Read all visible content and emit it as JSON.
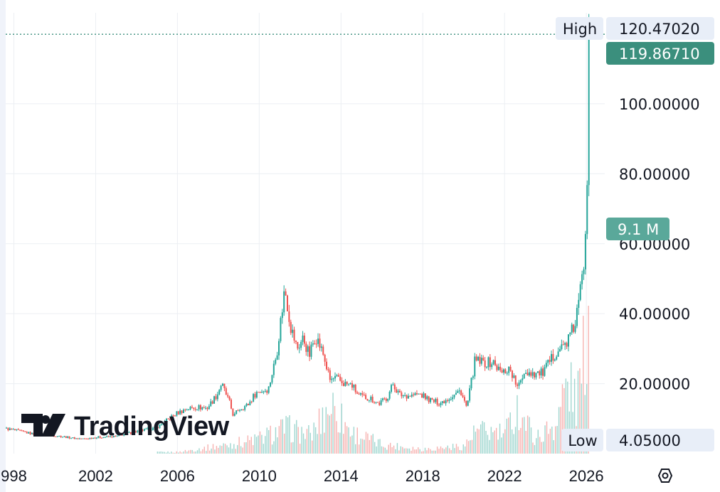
{
  "chart_data": {
    "type": "candlestick",
    "title": "",
    "x_ticks": [
      "998",
      "2002",
      "2006",
      "2010",
      "2014",
      "2018",
      "2022",
      "2026"
    ],
    "y_ticks": [
      "20.00000",
      "40.00000",
      "60.00000",
      "80.00000",
      "100.00000"
    ],
    "ylim": [
      0,
      126
    ],
    "xlim_years": [
      1997.6,
      2026.9
    ],
    "grid": true,
    "high": {
      "label": "High",
      "value": "120.47020"
    },
    "low": {
      "label": "Low",
      "value": "4.05000"
    },
    "last_price": {
      "value": "119.86710",
      "numeric": 119.8671
    },
    "volume_badge": "9.1 M",
    "price_path": [
      [
        1997.6,
        7.2
      ],
      [
        1998.0,
        6.8
      ],
      [
        1999.0,
        5.6
      ],
      [
        2000.0,
        5.2
      ],
      [
        2001.0,
        4.4
      ],
      [
        2001.5,
        4.2
      ],
      [
        2002.0,
        4.6
      ],
      [
        2003.0,
        4.9
      ],
      [
        2004.0,
        6.3
      ],
      [
        2005.0,
        7.3
      ],
      [
        2006.0,
        11.5
      ],
      [
        2006.5,
        12.8
      ],
      [
        2007.0,
        13.3
      ],
      [
        2007.5,
        13.0
      ],
      [
        2008.0,
        17.0
      ],
      [
        2008.2,
        20.0
      ],
      [
        2008.6,
        14.5
      ],
      [
        2008.8,
        10.5
      ],
      [
        2009.0,
        12.5
      ],
      [
        2009.5,
        14.0
      ],
      [
        2009.9,
        17.5
      ],
      [
        2010.5,
        18.5
      ],
      [
        2010.9,
        28.5
      ],
      [
        2011.3,
        47.5
      ],
      [
        2011.6,
        36.0
      ],
      [
        2011.9,
        30.0
      ],
      [
        2012.2,
        33.0
      ],
      [
        2012.5,
        28.0
      ],
      [
        2012.8,
        34.0
      ],
      [
        2013.2,
        28.0
      ],
      [
        2013.5,
        21.0
      ],
      [
        2013.8,
        21.5
      ],
      [
        2014.2,
        20.0
      ],
      [
        2014.6,
        19.5
      ],
      [
        2014.9,
        16.5
      ],
      [
        2015.5,
        15.8
      ],
      [
        2015.9,
        14.2
      ],
      [
        2016.3,
        16.0
      ],
      [
        2016.6,
        20.0
      ],
      [
        2016.9,
        16.8
      ],
      [
        2017.5,
        16.6
      ],
      [
        2017.9,
        17.0
      ],
      [
        2018.5,
        15.0
      ],
      [
        2018.9,
        14.5
      ],
      [
        2019.5,
        16.5
      ],
      [
        2019.9,
        18.0
      ],
      [
        2020.2,
        13.0
      ],
      [
        2020.6,
        26.5
      ],
      [
        2021.0,
        26.0
      ],
      [
        2021.5,
        26.0
      ],
      [
        2021.9,
        23.0
      ],
      [
        2022.3,
        24.5
      ],
      [
        2022.7,
        18.5
      ],
      [
        2023.0,
        23.5
      ],
      [
        2023.5,
        23.0
      ],
      [
        2023.9,
        23.0
      ],
      [
        2024.3,
        26.5
      ],
      [
        2024.6,
        29.5
      ],
      [
        2024.9,
        30.5
      ],
      [
        2025.2,
        33.0
      ],
      [
        2025.5,
        37.0
      ],
      [
        2025.8,
        48.0
      ],
      [
        2025.95,
        56.0
      ],
      [
        2026.05,
        72.0
      ],
      [
        2026.1,
        84.0
      ],
      [
        2026.15,
        119.8671
      ]
    ],
    "volume_max_millions": 12,
    "volume_path": [
      [
        1997.6,
        0.05
      ],
      [
        2006.0,
        0.1
      ],
      [
        2008.5,
        0.6
      ],
      [
        2010.0,
        1.0
      ],
      [
        2011.3,
        1.7
      ],
      [
        2012.5,
        1.2
      ],
      [
        2013.5,
        3.3
      ],
      [
        2014.5,
        1.4
      ],
      [
        2016.0,
        0.6
      ],
      [
        2018.0,
        0.3
      ],
      [
        2020.0,
        0.5
      ],
      [
        2020.6,
        1.5
      ],
      [
        2022.0,
        1.3
      ],
      [
        2022.6,
        3.0
      ],
      [
        2023.5,
        1.0
      ],
      [
        2024.5,
        2.0
      ],
      [
        2025.0,
        4.6
      ],
      [
        2025.5,
        3.5
      ],
      [
        2025.8,
        5.5
      ],
      [
        2026.0,
        9.1
      ],
      [
        2026.15,
        12.0
      ]
    ],
    "colors": {
      "up": "#26a69a",
      "down": "#ef5350",
      "last": "#3b8f7d",
      "volume": "#5aa89a",
      "badge_bg": "#e8eef8"
    }
  },
  "branding": {
    "logo_text": "TradingView"
  },
  "toolbar": {
    "settings_icon": "settings-hexagon-icon"
  }
}
